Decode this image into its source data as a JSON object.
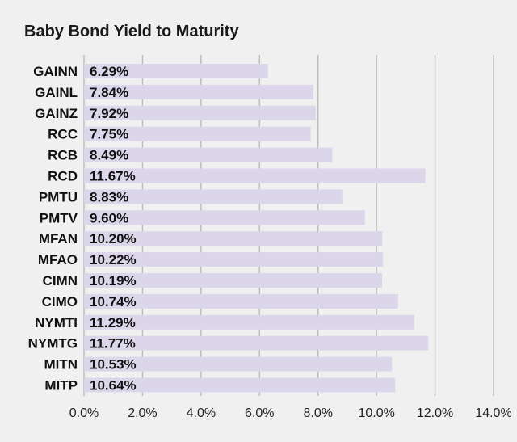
{
  "chart_data": {
    "type": "bar",
    "orientation": "horizontal",
    "title": "Baby Bond Yield to Maturity",
    "xlabel": "",
    "ylabel": "",
    "xlim": [
      0,
      14
    ],
    "tick_values": [
      0,
      2,
      4,
      6,
      8,
      10,
      12,
      14
    ],
    "tick_labels": [
      "0.0%",
      "2.0%",
      "4.0%",
      "6.0%",
      "8.0%",
      "10.0%",
      "12.0%",
      "14.0%"
    ],
    "grid": "vertical",
    "legend": "none",
    "categories": [
      "GAINN",
      "GAINL",
      "GAINZ",
      "RCC",
      "RCB",
      "RCD",
      "PMTU",
      "PMTV",
      "MFAN",
      "MFAO",
      "CIMN",
      "CIMO",
      "NYMTI",
      "NYMTG",
      "MITN",
      "MITP"
    ],
    "values": [
      6.29,
      7.84,
      7.92,
      7.75,
      8.49,
      11.67,
      8.83,
      9.6,
      10.2,
      10.22,
      10.19,
      10.74,
      11.29,
      11.77,
      10.53,
      10.64
    ],
    "value_labels": [
      "6.29%",
      "7.84%",
      "7.92%",
      "7.75%",
      "8.49%",
      "11.67%",
      "8.83%",
      "9.60%",
      "10.20%",
      "10.22%",
      "10.19%",
      "10.74%",
      "11.29%",
      "11.77%",
      "10.53%",
      "10.64%"
    ],
    "colors": {
      "bar": "#dcd6ea",
      "grid": "#bdbdbd",
      "background": "#f0f0f0"
    }
  }
}
